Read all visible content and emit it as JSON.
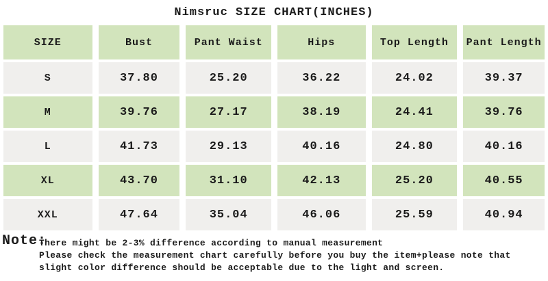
{
  "title": "Nimsruc SIZE CHART(INCHES)",
  "colors": {
    "accent_green": "#d2e4bc",
    "row_gray": "#f0efed",
    "text": "#1b1b1b",
    "background": "#ffffff"
  },
  "table": {
    "columns": [
      "SIZE",
      "Bust",
      "Pant Waist",
      "Hips",
      "Top Length",
      "Pant Length"
    ],
    "rows": [
      {
        "size": "S",
        "values": [
          "37.80",
          "25.20",
          "36.22",
          "24.02",
          "39.37"
        ]
      },
      {
        "size": "M",
        "values": [
          "39.76",
          "27.17",
          "38.19",
          "24.41",
          "39.76"
        ]
      },
      {
        "size": "L",
        "values": [
          "41.73",
          "29.13",
          "40.16",
          "24.80",
          "40.16"
        ]
      },
      {
        "size": "XL",
        "values": [
          "43.70",
          "31.10",
          "42.13",
          "25.20",
          "40.55"
        ]
      },
      {
        "size": "XXL",
        "values": [
          "47.64",
          "35.04",
          "46.06",
          "25.59",
          "40.94"
        ]
      }
    ]
  },
  "note": {
    "label": "Note:",
    "lines": [
      "There might be 2-3% difference according to manual measurement",
      "Please check the measurement chart carefully before you buy the item+please note that",
      "slight color difference should be acceptable due to the light and screen."
    ]
  }
}
